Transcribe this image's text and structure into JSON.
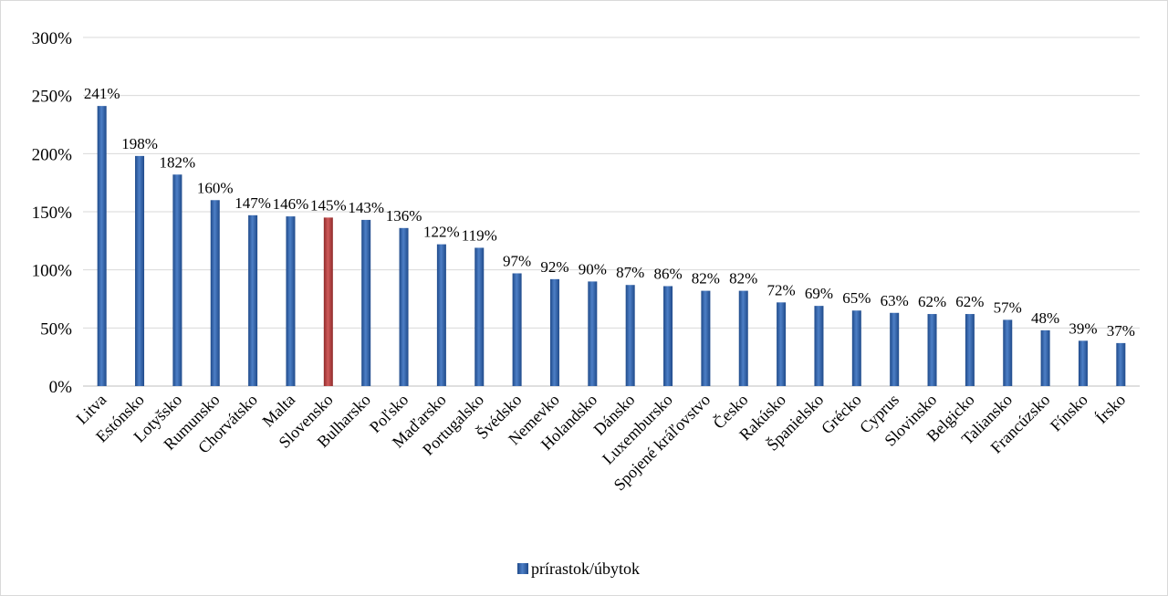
{
  "chart_data": {
    "type": "bar",
    "title": "",
    "xlabel": "",
    "ylabel": "",
    "ylim": [
      0,
      300
    ],
    "ytick_step": 50,
    "ytick_suffix": "%",
    "grid": true,
    "legend_position": "bottom",
    "categories": [
      "Litva",
      "Estónsko",
      "Lotyšsko",
      "Rumunsko",
      "Chorvátsko",
      "Malta",
      "Slovensko",
      "Bulharsko",
      "Poľsko",
      "Maďarsko",
      "Portugalsko",
      "Švédsko",
      "Nemevko",
      "Holandsko",
      "Dánsko",
      "Luxembursko",
      "Spojené kráľovstvo",
      "Česko",
      "Rakúsko",
      "Španielsko",
      "Grécko",
      "Cyprus",
      "Slovinsko",
      "Belgicko",
      "Taliansko",
      "Francúzsko",
      "Fínsko",
      "Írsko"
    ],
    "series": [
      {
        "name": "prírastok/úbytok",
        "values": [
          241,
          198,
          182,
          160,
          147,
          146,
          145,
          143,
          136,
          122,
          119,
          97,
          92,
          90,
          87,
          86,
          82,
          82,
          72,
          69,
          65,
          63,
          62,
          62,
          57,
          48,
          39,
          37
        ],
        "labels": [
          "241%",
          "198%",
          "182%",
          "160%",
          "147%",
          "146%",
          "145%",
          "143%",
          "136%",
          "122%",
          "119%",
          "97%",
          "92%",
          "90%",
          "87%",
          "86%",
          "82%",
          "82%",
          "72%",
          "69%",
          "65%",
          "63%",
          "62%",
          "62%",
          "57%",
          "48%",
          "39%",
          "37%"
        ],
        "color": "#2e5aa0",
        "highlight_index": 6,
        "highlight_color": "#b33a3a"
      }
    ]
  },
  "legend": {
    "label": "prírastok/úbytok"
  }
}
